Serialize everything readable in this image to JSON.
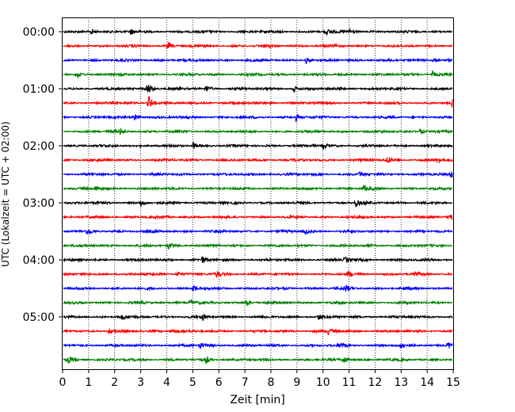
{
  "chart_data": {
    "type": "line",
    "title": "",
    "xlabel": "Zeit  [min]",
    "ylabel": "UTC (Lokalzeit = UTC + 02:00)",
    "xlim": [
      0,
      15
    ],
    "x_ticks": [
      0,
      1,
      2,
      3,
      4,
      5,
      6,
      7,
      8,
      9,
      10,
      11,
      12,
      13,
      14,
      15
    ],
    "x_grid": "dotted",
    "y_ticks": [
      "00:00",
      "01:00",
      "02:00",
      "03:00",
      "04:00",
      "05:00"
    ],
    "trace_interval_min": 15,
    "trace_colors": [
      "#000000",
      "#ff0000",
      "#0000ff",
      "#008000"
    ],
    "traces": [
      {
        "start": "00:00",
        "color": "#000000",
        "events_min": [
          1.1,
          2.6,
          10.1,
          11.0
        ]
      },
      {
        "start": "00:15",
        "color": "#ff0000",
        "events_min": [
          4.05
        ]
      },
      {
        "start": "00:30",
        "color": "#0000ff",
        "events_min": [
          9.35,
          14.25
        ]
      },
      {
        "start": "00:45",
        "color": "#008000",
        "events_min": [
          0.55,
          14.2
        ]
      },
      {
        "start": "01:00",
        "color": "#000000",
        "events_min": [
          3.25,
          5.5,
          8.85
        ]
      },
      {
        "start": "01:15",
        "color": "#ff0000",
        "events_min": [
          3.3,
          14.95
        ]
      },
      {
        "start": "01:30",
        "color": "#0000ff",
        "events_min": [
          2.75,
          8.95
        ]
      },
      {
        "start": "01:45",
        "color": "#008000",
        "events_min": [
          2.2,
          13.7
        ]
      },
      {
        "start": "02:00",
        "color": "#000000",
        "events_min": [
          5.0,
          10.0
        ]
      },
      {
        "start": "02:15",
        "color": "#ff0000",
        "events_min": [
          12.45,
          14.4
        ]
      },
      {
        "start": "02:30",
        "color": "#0000ff",
        "events_min": [
          11.4,
          14.9
        ]
      },
      {
        "start": "02:45",
        "color": "#008000",
        "events_min": [
          1.25,
          11.55
        ]
      },
      {
        "start": "03:00",
        "color": "#000000",
        "events_min": [
          3.0,
          11.25
        ]
      },
      {
        "start": "03:15",
        "color": "#ff0000",
        "events_min": [
          14.85
        ]
      },
      {
        "start": "03:30",
        "color": "#0000ff",
        "events_min": [
          0.95,
          9.3
        ]
      },
      {
        "start": "03:45",
        "color": "#008000",
        "events_min": [
          4.05
        ]
      },
      {
        "start": "04:00",
        "color": "#000000",
        "events_min": [
          5.35,
          10.85
        ]
      },
      {
        "start": "04:15",
        "color": "#ff0000",
        "events_min": [
          4.4,
          5.9,
          10.95,
          13.45
        ]
      },
      {
        "start": "04:30",
        "color": "#0000ff",
        "events_min": [
          5.0,
          10.85
        ]
      },
      {
        "start": "04:45",
        "color": "#008000",
        "events_min": [
          4.9,
          7.05
        ]
      },
      {
        "start": "05:00",
        "color": "#000000",
        "events_min": [
          2.25,
          5.35,
          9.8
        ]
      },
      {
        "start": "05:15",
        "color": "#ff0000",
        "events_min": [
          1.75,
          4.15,
          10.2
        ]
      },
      {
        "start": "05:30",
        "color": "#0000ff",
        "events_min": [
          5.25,
          10.65,
          13.0,
          14.8
        ]
      },
      {
        "start": "05:45",
        "color": "#008000",
        "events_min": [
          0.2,
          5.5,
          10.8
        ]
      }
    ]
  }
}
